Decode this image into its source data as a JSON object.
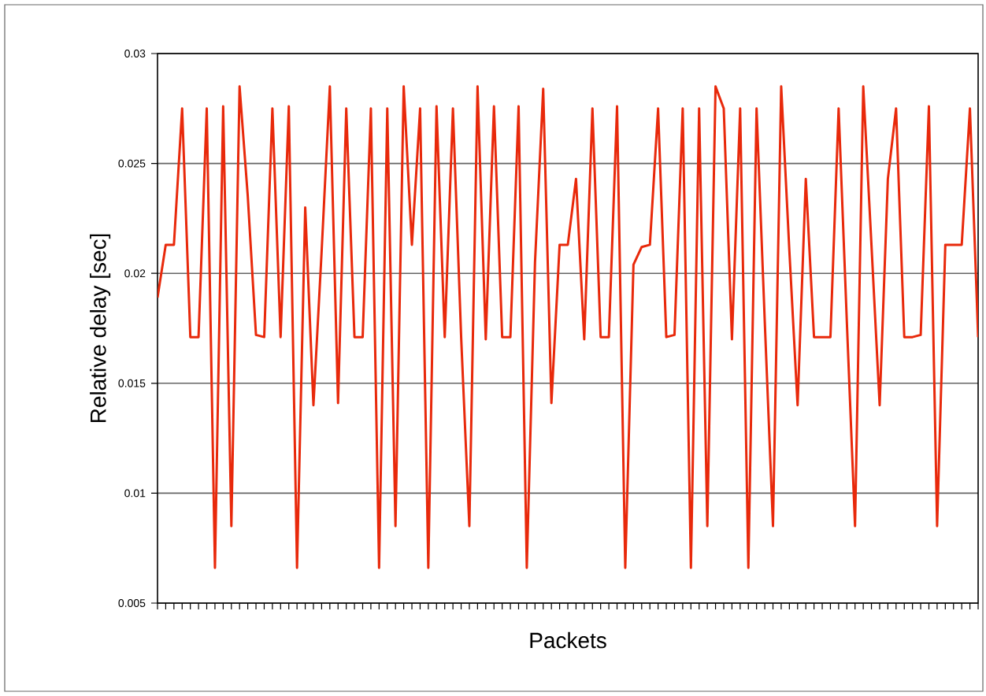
{
  "chart_data": {
    "type": "line",
    "xlabel": "Packets",
    "ylabel": "Relative delay [sec]",
    "categories": [
      null,
      null,
      null,
      null,
      null,
      null,
      null,
      null,
      null,
      null,
      null,
      null,
      null,
      null,
      null,
      null,
      null,
      null,
      null,
      null,
      null,
      null,
      null,
      null,
      null,
      null,
      null,
      null,
      null,
      null,
      null,
      null,
      null,
      null,
      null,
      null,
      null,
      null,
      null,
      null,
      null,
      null,
      null,
      null,
      null,
      null,
      null,
      null,
      null,
      null,
      null,
      null,
      null,
      null,
      null,
      null,
      null,
      null,
      null,
      null,
      null,
      null,
      null,
      null,
      null,
      null,
      null,
      null,
      null,
      null,
      null,
      null,
      null,
      null,
      null,
      null,
      null,
      null,
      null,
      null,
      null,
      null,
      null,
      null,
      null,
      null,
      null,
      null,
      null,
      null,
      null,
      null,
      null,
      null,
      null,
      null,
      null,
      null,
      null,
      null,
      null
    ],
    "values": [
      0.0189,
      0.0213,
      0.0213,
      0.0275,
      0.0171,
      0.0171,
      0.0275,
      0.0066,
      0.0276,
      0.0085,
      0.0285,
      0.0235,
      0.0172,
      0.0171,
      0.0275,
      0.0171,
      0.0276,
      0.0066,
      0.023,
      0.014,
      0.021,
      0.0285,
      0.0141,
      0.0275,
      0.0171,
      0.0171,
      0.0275,
      0.0066,
      0.0275,
      0.0085,
      0.0285,
      0.0213,
      0.0275,
      0.0066,
      0.0276,
      0.0171,
      0.0275,
      0.0171,
      0.0085,
      0.0285,
      0.017,
      0.0276,
      0.0171,
      0.0171,
      0.0276,
      0.0066,
      0.0205,
      0.0284,
      0.0141,
      0.0213,
      0.0213,
      0.0243,
      0.017,
      0.0275,
      0.0171,
      0.0171,
      0.0276,
      0.0066,
      0.0204,
      0.0212,
      0.0213,
      0.0275,
      0.0171,
      0.0172,
      0.0275,
      0.0066,
      0.0275,
      0.0085,
      0.0285,
      0.0275,
      0.017,
      0.0275,
      0.0066,
      0.0275,
      0.0178,
      0.0085,
      0.0285,
      0.021,
      0.014,
      0.0243,
      0.0171,
      0.0171,
      0.0171,
      0.0275,
      0.0178,
      0.0085,
      0.0285,
      0.0213,
      0.014,
      0.0243,
      0.0275,
      0.0171,
      0.0171,
      0.0172,
      0.0276,
      0.0085,
      0.0213,
      0.0213,
      0.0213,
      0.0275,
      0.0171
    ],
    "color": "#e8290b",
    "line_style": "solid",
    "grid": "y",
    "ylim": [
      0.005,
      0.03
    ],
    "yticks": [
      0.005,
      0.01,
      0.015,
      0.02,
      0.025,
      0.03
    ]
  }
}
